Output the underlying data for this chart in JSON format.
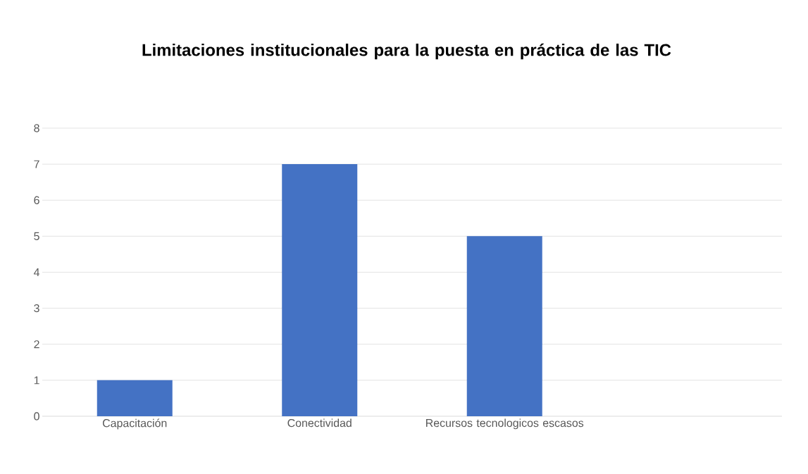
{
  "chart_data": {
    "type": "bar",
    "title": "Limitaciones institucionales para la puesta en práctica de las TIC",
    "categories": [
      "Capacitación",
      "Conectividad",
      "Recursos tecnologicos escasos",
      null
    ],
    "values": [
      1,
      7,
      5,
      null
    ],
    "color": "#4472c4",
    "ylim": [
      0,
      8
    ],
    "yticks": [
      0,
      1,
      2,
      3,
      4,
      5,
      6,
      7,
      8
    ],
    "grid": "y"
  }
}
